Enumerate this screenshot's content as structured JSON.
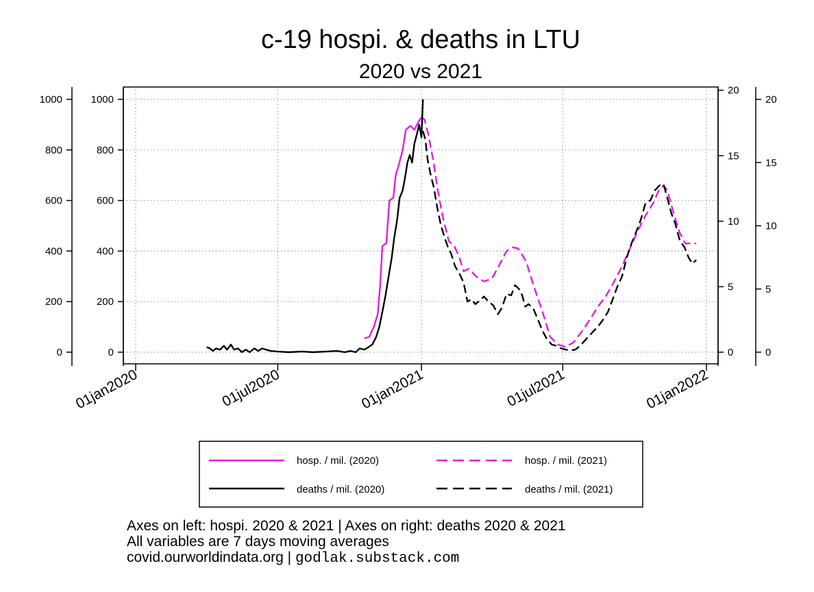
{
  "chart_data": {
    "type": "line",
    "title": "c-19 hospi. & deaths in LTU",
    "subtitle": "2020 vs 2021",
    "x_ticks": [
      "01jan2020",
      "01jul2020",
      "01jan2021",
      "01jul2021",
      "01jan2022"
    ],
    "y_left": {
      "range": [
        0,
        1000
      ],
      "ticks": [
        0,
        200,
        400,
        600,
        800,
        1000
      ]
    },
    "y_right": {
      "range": [
        0,
        20
      ],
      "ticks": [
        0,
        5,
        10,
        15,
        20
      ]
    },
    "grid": true,
    "legend": {
      "placement": "bottom",
      "columns": 2
    },
    "colors": {
      "hosp": "#e619e6",
      "deaths": "#000000"
    },
    "series": [
      {
        "name": "hosp. / mil. (2020)",
        "axis": "left",
        "style": "solid",
        "color": "#e619e6",
        "points": [
          [
            "2020-10-20",
            55
          ],
          [
            "2020-10-26",
            60
          ],
          [
            "2020-11-01",
            100
          ],
          [
            "2020-11-06",
            150
          ],
          [
            "2020-11-09",
            260
          ],
          [
            "2020-11-12",
            420
          ],
          [
            "2020-11-17",
            430
          ],
          [
            "2020-11-21",
            600
          ],
          [
            "2020-11-26",
            610
          ],
          [
            "2020-11-29",
            700
          ],
          [
            "2020-12-03",
            740
          ],
          [
            "2020-12-08",
            800
          ],
          [
            "2020-12-12",
            880
          ],
          [
            "2020-12-18",
            895
          ],
          [
            "2020-12-23",
            880
          ],
          [
            "2020-12-28",
            910
          ],
          [
            "2021-01-01",
            930
          ]
        ]
      },
      {
        "name": "hosp. / mil. (2021)",
        "axis": "left",
        "style": "dashed",
        "color": "#e619e6",
        "points": [
          [
            "2021-01-01",
            930
          ],
          [
            "2021-01-05",
            920
          ],
          [
            "2021-01-10",
            860
          ],
          [
            "2021-01-16",
            760
          ],
          [
            "2021-01-22",
            640
          ],
          [
            "2021-01-28",
            540
          ],
          [
            "2021-02-05",
            440
          ],
          [
            "2021-02-12",
            420
          ],
          [
            "2021-02-18",
            380
          ],
          [
            "2021-02-24",
            320
          ],
          [
            "2021-03-03",
            330
          ],
          [
            "2021-03-12",
            300
          ],
          [
            "2021-03-22",
            280
          ],
          [
            "2021-04-01",
            290
          ],
          [
            "2021-04-10",
            340
          ],
          [
            "2021-04-20",
            400
          ],
          [
            "2021-04-28",
            415
          ],
          [
            "2021-05-05",
            410
          ],
          [
            "2021-05-15",
            360
          ],
          [
            "2021-05-25",
            260
          ],
          [
            "2021-06-05",
            160
          ],
          [
            "2021-06-15",
            60
          ],
          [
            "2021-06-25",
            30
          ],
          [
            "2021-07-05",
            20
          ],
          [
            "2021-07-15",
            40
          ],
          [
            "2021-07-25",
            80
          ],
          [
            "2021-08-05",
            130
          ],
          [
            "2021-08-15",
            180
          ],
          [
            "2021-08-25",
            220
          ],
          [
            "2021-09-05",
            280
          ],
          [
            "2021-09-15",
            340
          ],
          [
            "2021-09-25",
            410
          ],
          [
            "2021-10-05",
            480
          ],
          [
            "2021-10-15",
            540
          ],
          [
            "2021-10-25",
            590
          ],
          [
            "2021-11-01",
            640
          ],
          [
            "2021-11-07",
            660
          ],
          [
            "2021-11-12",
            640
          ],
          [
            "2021-11-20",
            550
          ],
          [
            "2021-11-28",
            470
          ],
          [
            "2021-12-05",
            430
          ],
          [
            "2021-12-12",
            430
          ],
          [
            "2021-12-19",
            430
          ]
        ]
      },
      {
        "name": "deaths / mil. (2020)",
        "axis": "right",
        "style": "solid",
        "color": "#000000",
        "points": [
          [
            "2020-04-01",
            0.4
          ],
          [
            "2020-04-05",
            0.3
          ],
          [
            "2020-04-09",
            0.1
          ],
          [
            "2020-04-13",
            0.3
          ],
          [
            "2020-04-18",
            0.2
          ],
          [
            "2020-04-23",
            0.5
          ],
          [
            "2020-04-27",
            0.2
          ],
          [
            "2020-05-02",
            0.6
          ],
          [
            "2020-05-06",
            0.2
          ],
          [
            "2020-05-11",
            0.3
          ],
          [
            "2020-05-16",
            0.0
          ],
          [
            "2020-05-21",
            0.2
          ],
          [
            "2020-05-26",
            0.0
          ],
          [
            "2020-06-01",
            0.3
          ],
          [
            "2020-06-06",
            0.1
          ],
          [
            "2020-06-11",
            0.3
          ],
          [
            "2020-06-16",
            0.2
          ],
          [
            "2020-06-22",
            0.1
          ],
          [
            "2020-07-01",
            0.05
          ],
          [
            "2020-07-15",
            0.0
          ],
          [
            "2020-08-01",
            0.05
          ],
          [
            "2020-08-15",
            0.0
          ],
          [
            "2020-09-01",
            0.05
          ],
          [
            "2020-09-15",
            0.1
          ],
          [
            "2020-09-25",
            0.0
          ],
          [
            "2020-10-02",
            0.1
          ],
          [
            "2020-10-09",
            0.0
          ],
          [
            "2020-10-14",
            0.3
          ],
          [
            "2020-10-20",
            0.2
          ],
          [
            "2020-10-25",
            0.4
          ],
          [
            "2020-10-30",
            0.6
          ],
          [
            "2020-11-04",
            1.2
          ],
          [
            "2020-11-08",
            2.0
          ],
          [
            "2020-11-12",
            3.2
          ],
          [
            "2020-11-16",
            4.5
          ],
          [
            "2020-11-20",
            6.0
          ],
          [
            "2020-11-24",
            7.5
          ],
          [
            "2020-11-27",
            9.0
          ],
          [
            "2020-12-01",
            10.5
          ],
          [
            "2020-12-04",
            12.2
          ],
          [
            "2020-12-08",
            12.8
          ],
          [
            "2020-12-11",
            13.8
          ],
          [
            "2020-12-14",
            15.0
          ],
          [
            "2020-12-17",
            15.6
          ],
          [
            "2020-12-20",
            15.0
          ],
          [
            "2020-12-23",
            16.5
          ],
          [
            "2020-12-26",
            17.2
          ],
          [
            "2020-12-29",
            18.0
          ],
          [
            "2021-01-01",
            17.0
          ],
          [
            "2021-01-03",
            20.0
          ]
        ]
      },
      {
        "name": "deaths / mil. (2021)",
        "axis": "right",
        "style": "dashed",
        "color": "#000000",
        "points": [
          [
            "2021-01-03",
            17.5
          ],
          [
            "2021-01-06",
            16.8
          ],
          [
            "2021-01-09",
            15.2
          ],
          [
            "2021-01-13",
            14.0
          ],
          [
            "2021-01-17",
            13.0
          ],
          [
            "2021-01-21",
            11.5
          ],
          [
            "2021-01-26",
            10.0
          ],
          [
            "2021-01-31",
            9.0
          ],
          [
            "2021-02-04",
            8.3
          ],
          [
            "2021-02-08",
            7.8
          ],
          [
            "2021-02-13",
            6.8
          ],
          [
            "2021-02-18",
            6.3
          ],
          [
            "2021-02-24",
            5.5
          ],
          [
            "2021-03-01",
            4.0
          ],
          [
            "2021-03-06",
            4.2
          ],
          [
            "2021-03-11",
            3.8
          ],
          [
            "2021-03-17",
            4.1
          ],
          [
            "2021-03-22",
            4.4
          ],
          [
            "2021-03-28",
            4.0
          ],
          [
            "2021-04-03",
            3.7
          ],
          [
            "2021-04-09",
            3.0
          ],
          [
            "2021-04-14",
            3.5
          ],
          [
            "2021-04-20",
            4.6
          ],
          [
            "2021-04-26",
            4.5
          ],
          [
            "2021-05-01",
            5.3
          ],
          [
            "2021-05-06",
            5.0
          ],
          [
            "2021-05-10",
            4.5
          ],
          [
            "2021-05-14",
            3.6
          ],
          [
            "2021-05-18",
            3.8
          ],
          [
            "2021-05-24",
            3.5
          ],
          [
            "2021-05-30",
            2.6
          ],
          [
            "2021-06-05",
            1.7
          ],
          [
            "2021-06-11",
            1.0
          ],
          [
            "2021-06-17",
            0.6
          ],
          [
            "2021-06-23",
            0.5
          ],
          [
            "2021-06-29",
            0.3
          ],
          [
            "2021-07-05",
            0.2
          ],
          [
            "2021-07-11",
            0.15
          ],
          [
            "2021-07-17",
            0.2
          ],
          [
            "2021-07-23",
            0.5
          ],
          [
            "2021-07-29",
            0.9
          ],
          [
            "2021-08-04",
            1.3
          ],
          [
            "2021-08-10",
            1.7
          ],
          [
            "2021-08-16",
            2.1
          ],
          [
            "2021-08-22",
            2.6
          ],
          [
            "2021-08-28",
            3.2
          ],
          [
            "2021-09-03",
            4.2
          ],
          [
            "2021-09-09",
            5.2
          ],
          [
            "2021-09-15",
            6.0
          ],
          [
            "2021-09-21",
            7.5
          ],
          [
            "2021-09-27",
            8.6
          ],
          [
            "2021-10-03",
            9.5
          ],
          [
            "2021-10-09",
            10.5
          ],
          [
            "2021-10-15",
            11.8
          ],
          [
            "2021-10-21",
            12.0
          ],
          [
            "2021-10-27",
            12.8
          ],
          [
            "2021-11-02",
            13.2
          ],
          [
            "2021-11-07",
            13.3
          ],
          [
            "2021-11-12",
            12.2
          ],
          [
            "2021-11-17",
            11.0
          ],
          [
            "2021-11-22",
            10.2
          ],
          [
            "2021-11-28",
            8.8
          ],
          [
            "2021-12-04",
            8.3
          ],
          [
            "2021-12-09",
            7.5
          ],
          [
            "2021-12-14",
            7.0
          ],
          [
            "2021-12-19",
            7.3
          ]
        ]
      }
    ]
  },
  "notes": {
    "line1": "Axes on left: hospi. 2020 & 2021 | Axes on right: deaths 2020 & 2021",
    "line2": "All variables are 7 days moving averages",
    "line3_source": "covid.ourworldindata.org |",
    "line3_site": "godlak.substack.com"
  }
}
